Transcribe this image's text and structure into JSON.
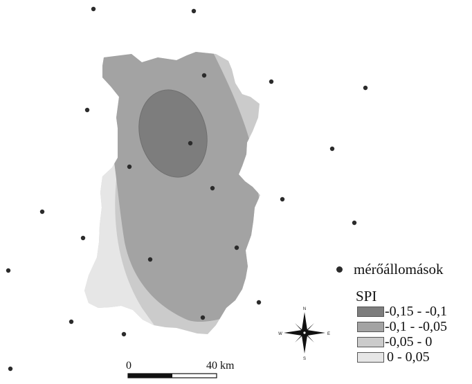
{
  "legend": {
    "station_label": "mérőállomások",
    "spi_title": "SPI",
    "classes": [
      {
        "label": "-0,15 - -0,1",
        "color": "#7d7d7d"
      },
      {
        "label": "-0,1 - -0,05",
        "color": "#a3a3a3"
      },
      {
        "label": "-0,05 - 0",
        "color": "#cbcbcb"
      },
      {
        "label": "0 - 0,05",
        "color": "#e6e6e6"
      }
    ]
  },
  "scale_bar": {
    "start_label": "0",
    "end_label": "40 km"
  },
  "compass": {
    "north": "N",
    "south": "S",
    "east": "E",
    "west": "W"
  }
}
